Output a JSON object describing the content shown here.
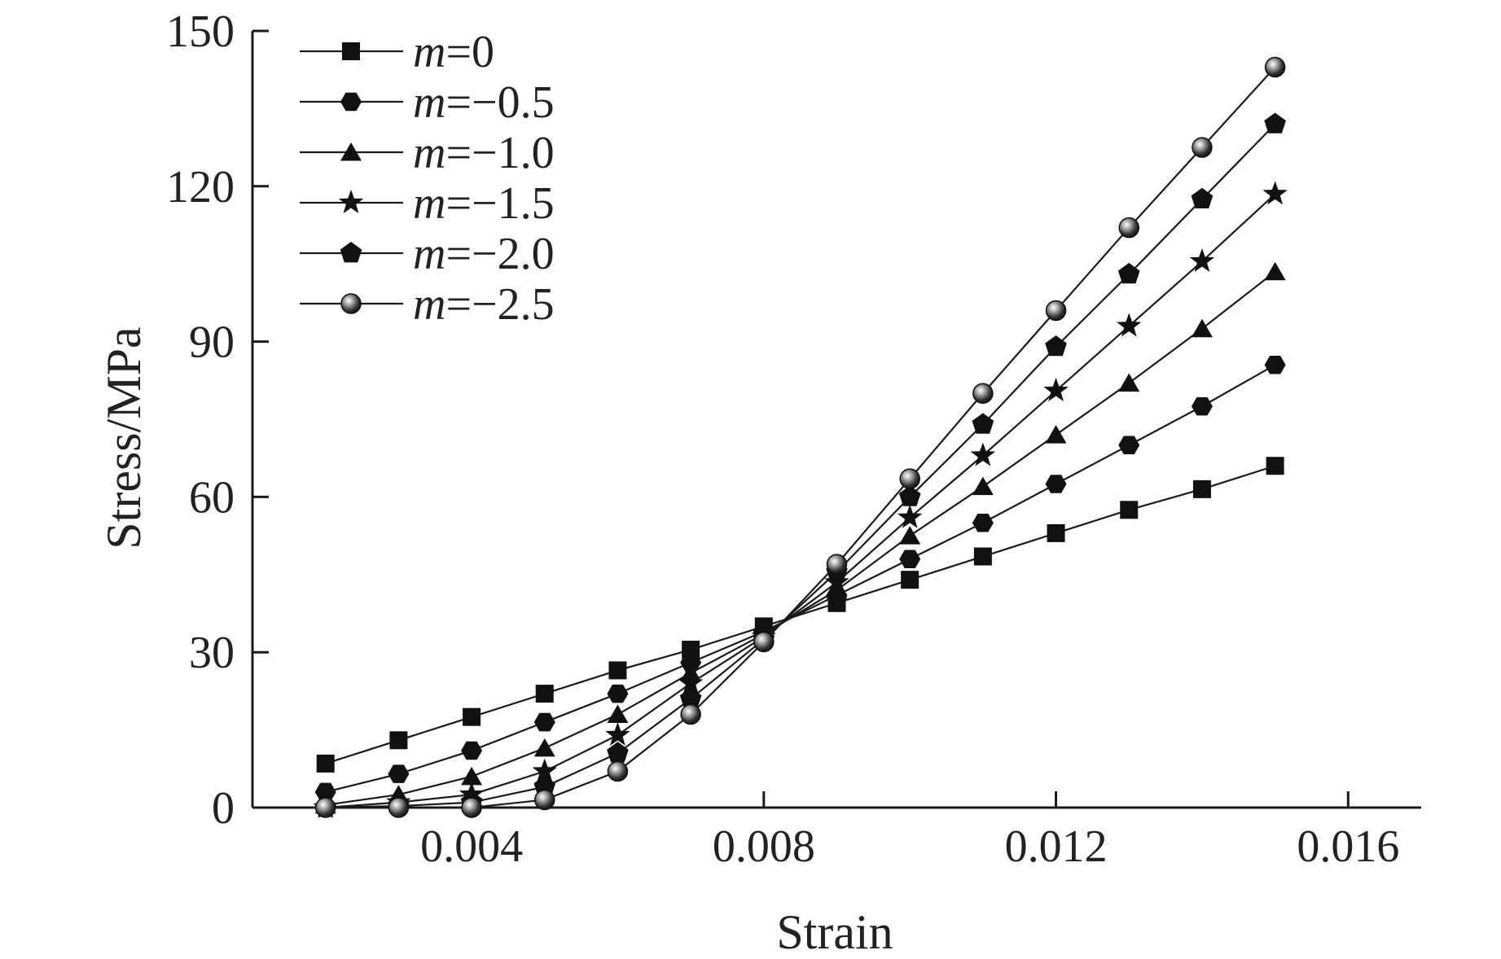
{
  "chart_data": {
    "type": "line",
    "title": "",
    "xlabel": "Strain",
    "ylabel": "Stress/MPa",
    "xlim": [
      0.001,
      0.017
    ],
    "ylim": [
      0,
      150
    ],
    "xticks": [
      0.004,
      0.008,
      0.012,
      0.016
    ],
    "xtick_labels": [
      "0.004",
      "0.008",
      "0.012",
      "0.016"
    ],
    "yticks": [
      0,
      30,
      60,
      90,
      120,
      150
    ],
    "ytick_labels": [
      "0",
      "30",
      "60",
      "90",
      "120",
      "150"
    ],
    "grid": false,
    "legend_position": "top-left",
    "x": [
      0.002,
      0.003,
      0.004,
      0.005,
      0.006,
      0.007,
      0.008,
      0.009,
      0.01,
      0.011,
      0.012,
      0.013,
      0.014,
      0.015
    ],
    "series": [
      {
        "name": "m=0",
        "legend_var": "m",
        "legend_rest": "=0",
        "marker": "square",
        "values": [
          8.5,
          13,
          17.5,
          22,
          26.5,
          30.5,
          35,
          39.5,
          44,
          48.5,
          53,
          57.5,
          61.5,
          66
        ]
      },
      {
        "name": "m=−0.5",
        "legend_var": "m",
        "legend_rest": "=−0.5",
        "marker": "hexagon",
        "values": [
          3,
          6.5,
          11,
          16.5,
          22,
          28,
          34,
          41,
          48,
          55,
          62.5,
          70,
          77.5,
          85.5
        ]
      },
      {
        "name": "m=−1.0",
        "legend_var": "m",
        "legend_rest": "=−1.0",
        "marker": "triangle",
        "values": [
          0.5,
          2.5,
          6,
          11.5,
          18,
          26,
          33.5,
          42,
          52.5,
          62,
          72,
          82,
          92.5,
          103.5
        ]
      },
      {
        "name": "m=−1.5",
        "legend_var": "m",
        "legend_rest": "=−1.5",
        "marker": "star",
        "values": [
          0,
          1,
          2.5,
          7,
          14,
          24,
          33,
          43.5,
          56,
          68,
          80.5,
          93,
          105.5,
          118.5
        ]
      },
      {
        "name": "m=−2.0",
        "legend_var": "m",
        "legend_rest": "=−2.0",
        "marker": "pentagon",
        "values": [
          0,
          0.3,
          1,
          4,
          10.5,
          21,
          32.5,
          45.5,
          60,
          74,
          89,
          103,
          117.5,
          132
        ]
      },
      {
        "name": "m=−2.5",
        "legend_var": "m",
        "legend_rest": "=−2.5",
        "marker": "sphere",
        "values": [
          0,
          0,
          0,
          1.5,
          7,
          18,
          32,
          47,
          63.5,
          80,
          96,
          112,
          127.5,
          143
        ]
      }
    ],
    "colors": {
      "line": "#1a1a1a",
      "marker": "#111111",
      "axis": "#1a1a1a",
      "text": "#222222"
    }
  }
}
